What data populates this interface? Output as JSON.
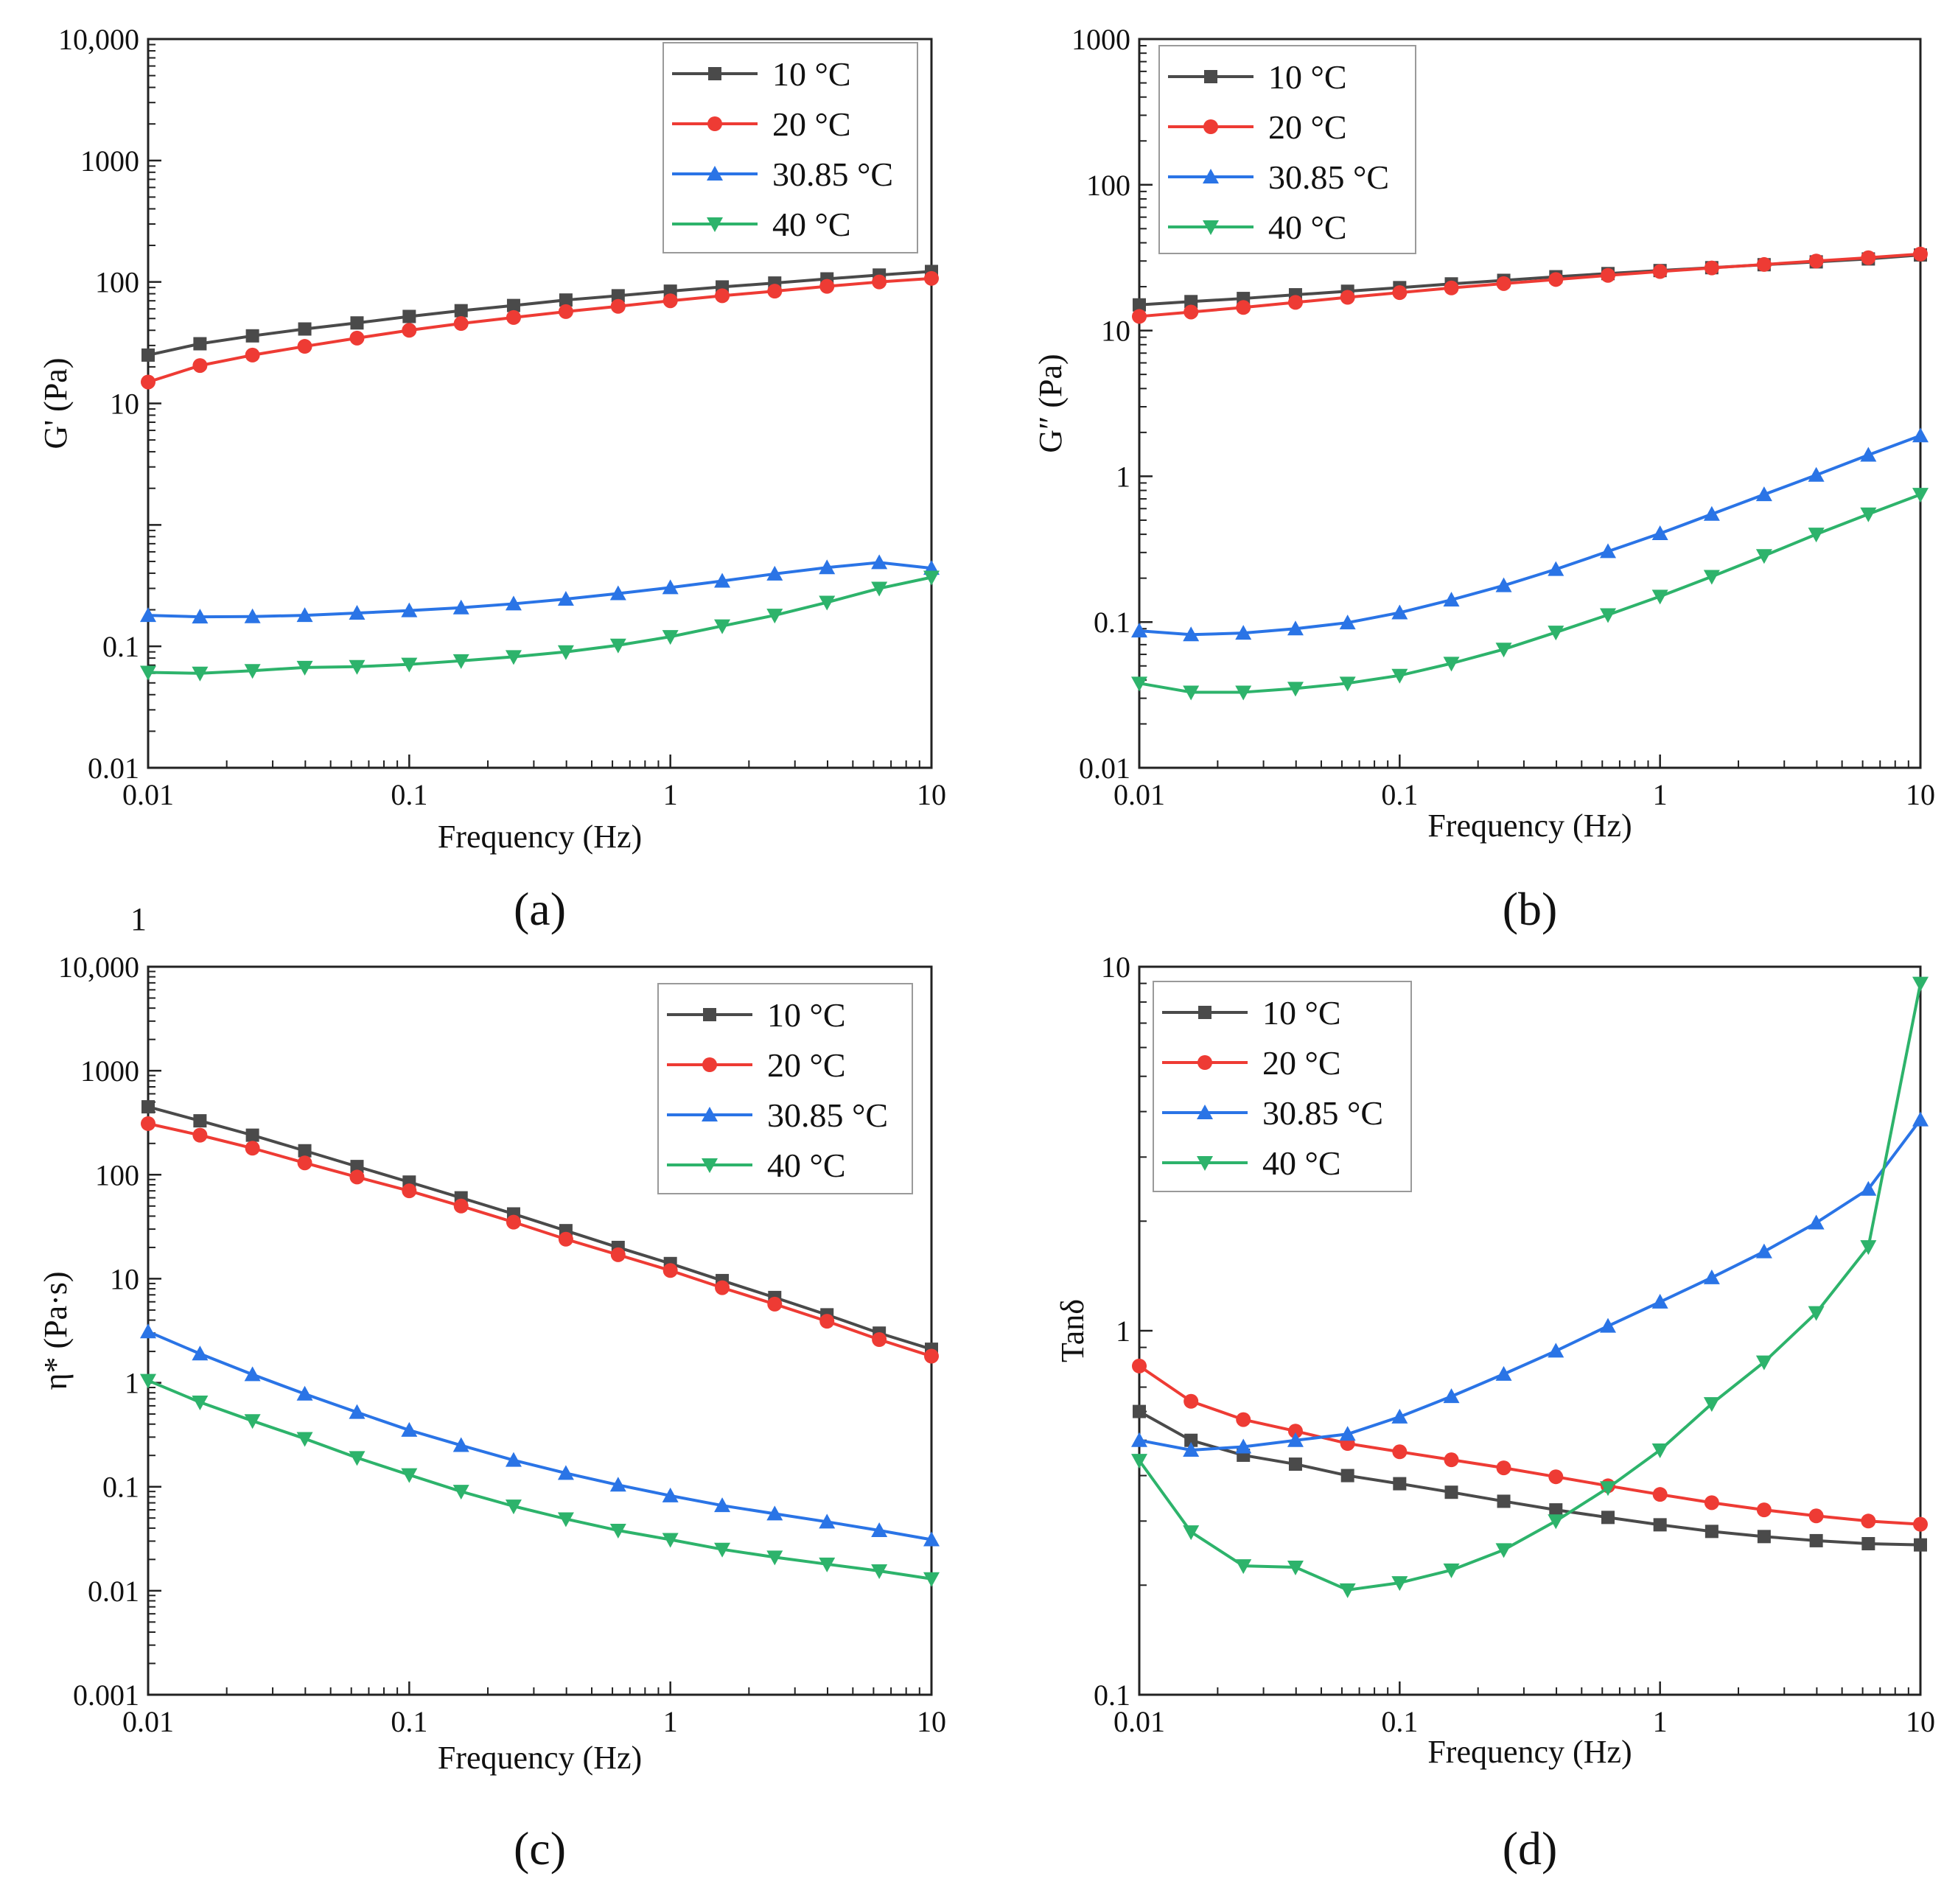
{
  "stray_mark": "1",
  "series_style": [
    {
      "color": "#4a4a4a",
      "marker": "square"
    },
    {
      "color": "#ee3b34",
      "marker": "circle"
    },
    {
      "color": "#2a74e6",
      "marker": "triangle-up"
    },
    {
      "color": "#2db36b",
      "marker": "triangle-down"
    }
  ],
  "chart_data": [
    {
      "panel_label": "(a)",
      "type": "line",
      "xlabel": "Frequency (Hz)",
      "ylabel": "G' (Pa)",
      "xscale": "log",
      "yscale": "log",
      "xlim": [
        0.01,
        10
      ],
      "ylim": [
        0.01,
        10000
      ],
      "xticks": [
        0.01,
        0.1,
        1,
        10
      ],
      "xtick_labels": [
        "0.01",
        "0.1",
        "1",
        "10"
      ],
      "yticks": [
        0.01,
        0.1,
        10,
        100,
        1000,
        10000
      ],
      "ytick_labels": [
        "0.01",
        "0.1",
        "10",
        "100",
        "1000",
        "10,000"
      ],
      "legend_position": "top-right",
      "x": [
        0.01,
        0.0158,
        0.0251,
        0.0398,
        0.0631,
        0.1,
        0.158,
        0.251,
        0.398,
        0.631,
        1,
        1.58,
        2.51,
        3.98,
        6.31,
        10
      ],
      "series": [
        {
          "name": "10 °C",
          "values": [
            25,
            31,
            36,
            41,
            46,
            52,
            58,
            64,
            71,
            77,
            84,
            91,
            98,
            106,
            114,
            122
          ]
        },
        {
          "name": "20 °C",
          "values": [
            15,
            20.5,
            25,
            29.5,
            34.5,
            40,
            45.5,
            51,
            57,
            63,
            70,
            77,
            84,
            92,
            100,
            107
          ]
        },
        {
          "name": "30.85 °C",
          "values": [
            0.18,
            0.175,
            0.176,
            0.18,
            0.188,
            0.197,
            0.208,
            0.224,
            0.245,
            0.272,
            0.305,
            0.345,
            0.395,
            0.445,
            0.49,
            0.44
          ]
        },
        {
          "name": "40 °C",
          "values": [
            0.061,
            0.06,
            0.063,
            0.067,
            0.068,
            0.071,
            0.076,
            0.082,
            0.09,
            0.102,
            0.12,
            0.147,
            0.18,
            0.23,
            0.3,
            0.37
          ]
        }
      ]
    },
    {
      "panel_label": "(b)",
      "type": "line",
      "xlabel": "Frequency (Hz)",
      "ylabel": "G″ (Pa)",
      "xscale": "log",
      "yscale": "log",
      "xlim": [
        0.01,
        10
      ],
      "ylim": [
        0.01,
        1000
      ],
      "xticks": [
        0.01,
        0.1,
        1,
        10
      ],
      "xtick_labels": [
        "0.01",
        "0.1",
        "1",
        "10"
      ],
      "yticks": [
        0.01,
        0.1,
        1,
        10,
        100,
        1000
      ],
      "ytick_labels": [
        "0.01",
        "0.1",
        "1",
        "10",
        "100",
        "1000"
      ],
      "legend_position": "top-left",
      "x": [
        0.01,
        0.0158,
        0.0251,
        0.0398,
        0.0631,
        0.1,
        0.158,
        0.251,
        0.398,
        0.631,
        1,
        1.58,
        2.51,
        3.98,
        6.31,
        10
      ],
      "series": [
        {
          "name": "10 °C",
          "values": [
            15,
            15.8,
            16.6,
            17.6,
            18.6,
            19.7,
            20.9,
            22.1,
            23.4,
            24.6,
            25.8,
            27,
            28.3,
            29.6,
            31,
            33
          ]
        },
        {
          "name": "20 °C",
          "values": [
            12.5,
            13.4,
            14.4,
            15.6,
            16.9,
            18.2,
            19.6,
            21,
            22.4,
            23.9,
            25.4,
            26.9,
            28.4,
            30,
            31.6,
            33.5
          ]
        },
        {
          "name": "30.85 °C",
          "values": [
            0.087,
            0.082,
            0.084,
            0.09,
            0.099,
            0.116,
            0.142,
            0.178,
            0.23,
            0.305,
            0.405,
            0.55,
            0.75,
            1.02,
            1.4,
            1.9
          ]
        },
        {
          "name": "40 °C",
          "values": [
            0.038,
            0.033,
            0.033,
            0.035,
            0.038,
            0.043,
            0.052,
            0.065,
            0.085,
            0.112,
            0.15,
            0.205,
            0.285,
            0.4,
            0.55,
            0.75
          ]
        }
      ]
    },
    {
      "panel_label": "(c)",
      "type": "line",
      "xlabel": "Frequency (Hz)",
      "ylabel": "η* (Pa·s)",
      "xscale": "log",
      "yscale": "log",
      "xlim": [
        0.01,
        10
      ],
      "ylim": [
        0.001,
        10000
      ],
      "xticks": [
        0.01,
        0.1,
        1,
        10
      ],
      "xtick_labels": [
        "0.01",
        "0.1",
        "1",
        "10"
      ],
      "yticks": [
        0.001,
        0.01,
        0.1,
        1,
        10,
        100,
        1000,
        10000
      ],
      "ytick_labels": [
        "0.001",
        "0.01",
        "0.1",
        "1",
        "10",
        "100",
        "1000",
        "10,000"
      ],
      "legend_position": "top-right",
      "x": [
        0.01,
        0.0158,
        0.0251,
        0.0398,
        0.0631,
        0.1,
        0.158,
        0.251,
        0.398,
        0.631,
        1,
        1.58,
        2.51,
        3.98,
        6.31,
        10
      ],
      "series": [
        {
          "name": "10 °C",
          "values": [
            450,
            330,
            240,
            170,
            120,
            85,
            60,
            42,
            29,
            20,
            14,
            9.6,
            6.6,
            4.5,
            3,
            2.1
          ]
        },
        {
          "name": "20 °C",
          "values": [
            310,
            240,
            180,
            130,
            95,
            70,
            50,
            35,
            24,
            17,
            12,
            8.2,
            5.7,
            3.9,
            2.6,
            1.8
          ]
        },
        {
          "name": "30.85 °C",
          "values": [
            3.1,
            1.9,
            1.2,
            0.78,
            0.52,
            0.35,
            0.25,
            0.18,
            0.135,
            0.104,
            0.082,
            0.066,
            0.055,
            0.046,
            0.038,
            0.031
          ]
        },
        {
          "name": "40 °C",
          "values": [
            1.05,
            0.65,
            0.43,
            0.29,
            0.19,
            0.13,
            0.09,
            0.065,
            0.049,
            0.038,
            0.031,
            0.025,
            0.021,
            0.018,
            0.0155,
            0.013
          ]
        }
      ]
    },
    {
      "panel_label": "(d)",
      "type": "line",
      "xlabel": "Frequency (Hz)",
      "ylabel": "Tanδ",
      "xscale": "log",
      "yscale": "log",
      "xlim": [
        0.01,
        10
      ],
      "ylim": [
        0.1,
        10
      ],
      "xticks": [
        0.01,
        0.1,
        1,
        10
      ],
      "xtick_labels": [
        "0.01",
        "0.1",
        "1",
        "10"
      ],
      "yticks": [
        0.1,
        1,
        10
      ],
      "ytick_labels": [
        "0.1",
        "1",
        "10"
      ],
      "legend_position": "top-left",
      "x": [
        0.01,
        0.0158,
        0.0251,
        0.0398,
        0.0631,
        0.1,
        0.158,
        0.251,
        0.398,
        0.631,
        1,
        1.58,
        2.51,
        3.98,
        6.31,
        10
      ],
      "series": [
        {
          "name": "10 °C",
          "values": [
            0.6,
            0.5,
            0.455,
            0.43,
            0.4,
            0.38,
            0.36,
            0.34,
            0.322,
            0.307,
            0.293,
            0.281,
            0.272,
            0.265,
            0.26,
            0.258
          ]
        },
        {
          "name": "20 °C",
          "values": [
            0.8,
            0.64,
            0.57,
            0.53,
            0.49,
            0.465,
            0.442,
            0.42,
            0.397,
            0.375,
            0.355,
            0.337,
            0.322,
            0.31,
            0.3,
            0.294
          ]
        },
        {
          "name": "30.85 °C",
          "values": [
            0.5,
            0.47,
            0.48,
            0.5,
            0.52,
            0.58,
            0.66,
            0.76,
            0.88,
            1.03,
            1.2,
            1.4,
            1.65,
            1.98,
            2.45,
            3.8
          ]
        },
        {
          "name": "40 °C",
          "values": [
            0.44,
            0.28,
            0.226,
            0.224,
            0.194,
            0.203,
            0.22,
            0.25,
            0.3,
            0.37,
            0.47,
            0.63,
            0.82,
            1.12,
            1.7,
            9
          ]
        }
      ]
    }
  ]
}
